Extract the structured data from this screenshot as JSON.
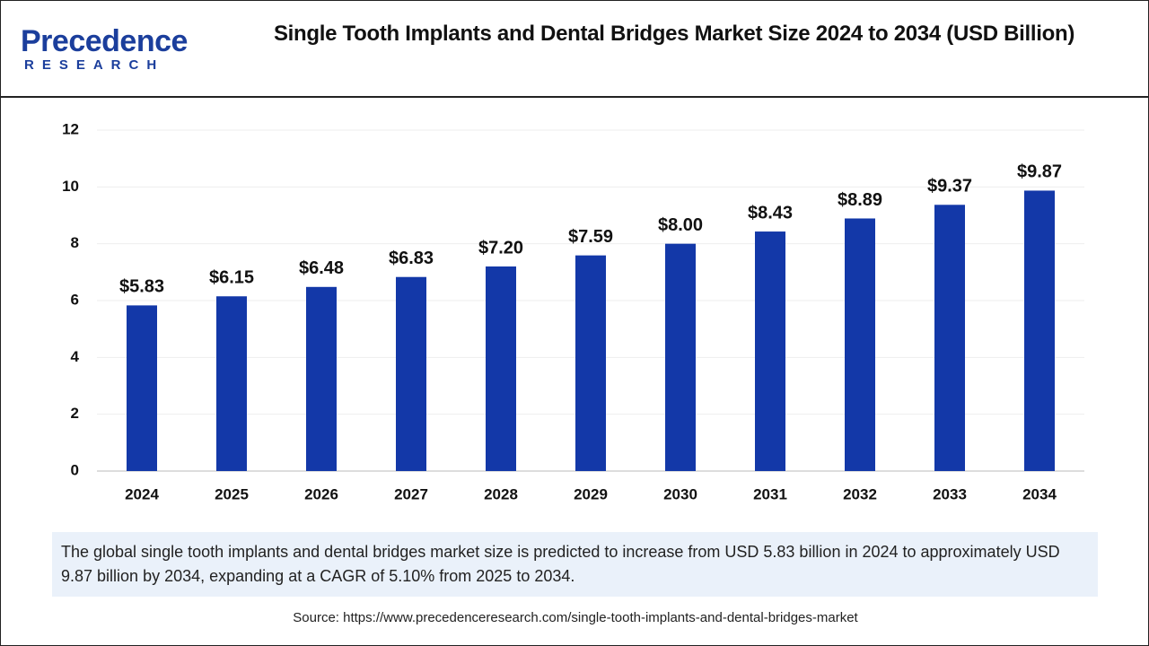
{
  "logo": {
    "name": "Precedence",
    "tagline": "RESEARCH"
  },
  "chart_data": {
    "type": "bar",
    "title": "Single Tooth Implants and Dental Bridges Market Size 2024 to 2034 (USD Billion)",
    "categories": [
      "2024",
      "2025",
      "2026",
      "2027",
      "2028",
      "2029",
      "2030",
      "2031",
      "2032",
      "2033",
      "2034"
    ],
    "values": [
      5.83,
      6.15,
      6.48,
      6.83,
      7.2,
      7.59,
      8.0,
      8.43,
      8.89,
      9.37,
      9.87
    ],
    "value_labels": [
      "$5.83",
      "$6.15",
      "$6.48",
      "$6.83",
      "$7.20",
      "$7.59",
      "$8.00",
      "$8.43",
      "$8.89",
      "$9.37",
      "$9.87"
    ],
    "color": "#1338a8",
    "ylim": [
      0,
      12
    ],
    "yticks": [
      0,
      2,
      4,
      6,
      8,
      10,
      12
    ],
    "grid": true
  },
  "description": "The global single tooth implants and dental bridges market size is predicted to increase from USD 5.83 billion in 2024 to approximately USD 9.87 billion by 2034, expanding at a CAGR of 5.10% from 2025 to 2034.",
  "source": "Source: https://www.precedenceresearch.com/single-tooth-implants-and-dental-bridges-market"
}
